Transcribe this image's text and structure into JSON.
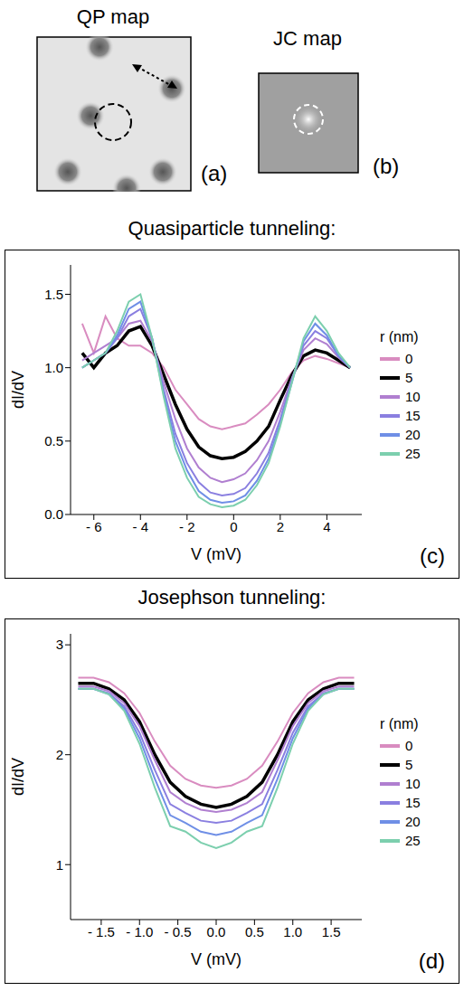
{
  "panels": {
    "a": {
      "title": "QP map",
      "label": "(a)"
    },
    "b": {
      "title": "JC map",
      "label": "(b)"
    }
  },
  "chart_data": [
    {
      "type": "line",
      "title": "Quasiparticle tunneling:",
      "label": "(c)",
      "x_label": "V (mV)",
      "y_label": "dI/dV",
      "legend_title": "r (nm)",
      "legend": "right",
      "x": [
        -6.5,
        -6,
        -5.5,
        -5,
        -4.5,
        -4,
        -3.5,
        -3,
        -2.5,
        -2,
        -1.5,
        -1,
        -0.5,
        0,
        0.5,
        1,
        1.5,
        2,
        2.5,
        3,
        3.5,
        4,
        4.5,
        5
      ],
      "series": [
        {
          "name": "0",
          "color": "#d98cc0",
          "values": [
            1.3,
            1.1,
            1.35,
            1.2,
            1.15,
            1.15,
            1.1,
            1.0,
            0.85,
            0.75,
            0.65,
            0.6,
            0.58,
            0.6,
            0.62,
            0.68,
            0.75,
            0.85,
            0.97,
            1.05,
            1.08,
            1.06,
            1.03,
            1.0
          ]
        },
        {
          "name": "5",
          "color": "#000000",
          "values": [
            1.1,
            1.0,
            1.1,
            1.15,
            1.25,
            1.28,
            1.15,
            0.95,
            0.75,
            0.58,
            0.46,
            0.4,
            0.38,
            0.39,
            0.43,
            0.5,
            0.6,
            0.78,
            0.95,
            1.08,
            1.12,
            1.1,
            1.05,
            1.0
          ]
        },
        {
          "name": "10",
          "color": "#b07fd0",
          "values": [
            1.05,
            1.1,
            1.15,
            1.2,
            1.3,
            1.32,
            1.18,
            0.9,
            0.65,
            0.45,
            0.32,
            0.25,
            0.22,
            0.24,
            0.28,
            0.37,
            0.5,
            0.7,
            0.93,
            1.12,
            1.2,
            1.16,
            1.07,
            1.0
          ]
        },
        {
          "name": "15",
          "color": "#8a7fe0",
          "values": [
            1.0,
            1.05,
            1.1,
            1.2,
            1.35,
            1.4,
            1.2,
            0.85,
            0.55,
            0.35,
            0.22,
            0.15,
            0.13,
            0.14,
            0.18,
            0.28,
            0.42,
            0.65,
            0.92,
            1.15,
            1.25,
            1.2,
            1.08,
            1.0
          ]
        },
        {
          "name": "20",
          "color": "#6f8fe6",
          "values": [
            1.0,
            1.05,
            1.1,
            1.22,
            1.4,
            1.45,
            1.2,
            0.82,
            0.5,
            0.3,
            0.16,
            0.1,
            0.08,
            0.09,
            0.13,
            0.23,
            0.38,
            0.62,
            0.9,
            1.18,
            1.3,
            1.22,
            1.08,
            1.0
          ]
        },
        {
          "name": "25",
          "color": "#7ccfae",
          "values": [
            1.0,
            1.05,
            1.1,
            1.25,
            1.45,
            1.5,
            1.2,
            0.8,
            0.45,
            0.25,
            0.12,
            0.07,
            0.05,
            0.06,
            0.1,
            0.2,
            0.35,
            0.6,
            0.9,
            1.2,
            1.35,
            1.25,
            1.1,
            1.0
          ]
        }
      ],
      "xlim": [
        -7,
        5.5
      ],
      "xticks": [
        {
          "value": -6,
          "label": "- 6"
        },
        {
          "value": -4,
          "label": "- 4"
        },
        {
          "value": -2,
          "label": "- 2"
        },
        0,
        2,
        4
      ],
      "ylim": [
        0,
        1.7
      ],
      "yticks": [
        {
          "value": 0,
          "label": "0.0"
        },
        {
          "value": 0.5,
          "label": "0.5"
        },
        {
          "value": 1,
          "label": "1.0"
        },
        {
          "value": 1.5,
          "label": "1.5"
        }
      ]
    },
    {
      "type": "line",
      "title": "Josephson tunneling:",
      "label": "(d)",
      "x_label": "V (mV)",
      "y_label": "dI/dV",
      "legend_title": "r (nm)",
      "legend": "right",
      "x": [
        -1.8,
        -1.6,
        -1.4,
        -1.2,
        -1,
        -0.8,
        -0.6,
        -0.4,
        -0.2,
        0,
        0.2,
        0.4,
        0.6,
        0.8,
        1,
        1.2,
        1.4,
        1.6,
        1.8
      ],
      "series": [
        {
          "name": "0",
          "color": "#d98cc0",
          "values": [
            2.7,
            2.7,
            2.66,
            2.56,
            2.38,
            2.12,
            1.9,
            1.78,
            1.72,
            1.7,
            1.72,
            1.78,
            1.9,
            2.12,
            2.38,
            2.56,
            2.66,
            2.7,
            2.7
          ]
        },
        {
          "name": "5",
          "color": "#000000",
          "values": [
            2.65,
            2.65,
            2.6,
            2.5,
            2.3,
            2.0,
            1.75,
            1.62,
            1.55,
            1.52,
            1.55,
            1.62,
            1.75,
            2.0,
            2.3,
            2.5,
            2.6,
            2.65,
            2.65
          ]
        },
        {
          "name": "10",
          "color": "#b07fd0",
          "values": [
            2.62,
            2.62,
            2.58,
            2.47,
            2.26,
            1.95,
            1.66,
            1.56,
            1.5,
            1.48,
            1.5,
            1.56,
            1.66,
            1.95,
            2.26,
            2.47,
            2.58,
            2.62,
            2.62
          ]
        },
        {
          "name": "15",
          "color": "#8a7fe0",
          "values": [
            2.6,
            2.6,
            2.56,
            2.44,
            2.2,
            1.86,
            1.55,
            1.47,
            1.4,
            1.38,
            1.4,
            1.47,
            1.55,
            1.86,
            2.2,
            2.44,
            2.56,
            2.6,
            2.6
          ]
        },
        {
          "name": "20",
          "color": "#6f8fe6",
          "values": [
            2.6,
            2.6,
            2.55,
            2.42,
            2.15,
            1.78,
            1.45,
            1.38,
            1.3,
            1.27,
            1.3,
            1.38,
            1.45,
            1.78,
            2.15,
            2.42,
            2.55,
            2.6,
            2.6
          ]
        },
        {
          "name": "25",
          "color": "#7ccfae",
          "values": [
            2.6,
            2.6,
            2.55,
            2.4,
            2.1,
            1.7,
            1.35,
            1.3,
            1.2,
            1.15,
            1.2,
            1.3,
            1.35,
            1.7,
            2.1,
            2.4,
            2.55,
            2.6,
            2.6
          ]
        }
      ],
      "xlim": [
        -1.9,
        1.9
      ],
      "xticks": [
        {
          "value": -1.5,
          "label": "- 1.5"
        },
        {
          "value": -1,
          "label": "- 1.0"
        },
        {
          "value": -0.5,
          "label": "- 0.5"
        },
        {
          "value": 0,
          "label": "0.0"
        },
        0.5,
        {
          "value": 1,
          "label": "1.0"
        },
        1.5
      ],
      "ylim": [
        0.5,
        3.1
      ],
      "yticks": [
        1,
        2,
        3
      ]
    }
  ]
}
